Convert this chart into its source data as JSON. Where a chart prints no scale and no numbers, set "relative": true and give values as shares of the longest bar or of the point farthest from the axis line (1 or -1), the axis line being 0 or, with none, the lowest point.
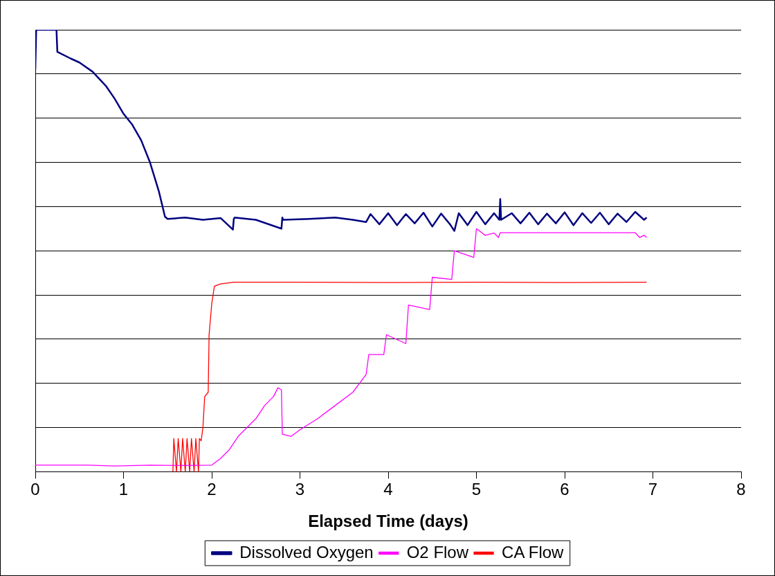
{
  "chart_data": {
    "type": "line",
    "relative": true,
    "xlabel": "Elapsed Time (days)",
    "xlim": [
      0,
      8
    ],
    "xticks": [
      0,
      1,
      2,
      3,
      4,
      5,
      6,
      7,
      8
    ],
    "grid": "y",
    "legend": "bottom",
    "marker": "none",
    "line_style": "solid",
    "series": [
      {
        "name": "Dissolved Oxygen",
        "color": "#000080",
        "x": [
          0,
          0.01,
          0.24,
          0.25,
          0.4,
          0.5,
          0.65,
          0.8,
          0.9,
          1.0,
          1.1,
          1.2,
          1.3,
          1.4,
          1.47,
          1.5,
          1.7,
          1.9,
          2.1,
          2.24,
          2.25,
          2.26,
          2.5,
          2.79,
          2.8,
          2.81,
          3.1,
          3.4,
          3.6,
          3.75,
          3.8,
          3.9,
          4.0,
          4.1,
          4.2,
          4.3,
          4.4,
          4.5,
          4.6,
          4.7,
          4.75,
          4.8,
          4.9,
          5.0,
          5.1,
          5.2,
          5.26,
          5.27,
          5.28,
          5.4,
          5.5,
          5.6,
          5.7,
          5.8,
          5.9,
          6.0,
          6.1,
          6.2,
          6.3,
          6.4,
          6.5,
          6.6,
          6.7,
          6.8,
          6.9,
          6.93
        ],
        "values": [
          0.91,
          1,
          1,
          0.95,
          0.935,
          0.926,
          0.905,
          0.873,
          0.844,
          0.81,
          0.785,
          0.75,
          0.7,
          0.635,
          0.577,
          0.572,
          0.575,
          0.57,
          0.574,
          0.548,
          0.572,
          0.575,
          0.57,
          0.55,
          0.575,
          0.57,
          0.572,
          0.575,
          0.57,
          0.565,
          0.583,
          0.56,
          0.585,
          0.558,
          0.583,
          0.562,
          0.586,
          0.555,
          0.584,
          0.56,
          0.545,
          0.585,
          0.558,
          0.588,
          0.56,
          0.585,
          0.57,
          0.617,
          0.57,
          0.585,
          0.562,
          0.586,
          0.56,
          0.584,
          0.562,
          0.587,
          0.558,
          0.585,
          0.563,
          0.586,
          0.56,
          0.584,
          0.565,
          0.588,
          0.57,
          0.575
        ]
      },
      {
        "name": "O2 Flow",
        "color": "#ff00ff",
        "x": [
          0,
          0.6,
          0.9,
          1.3,
          1.7,
          2.0,
          2.1,
          2.2,
          2.3,
          2.4,
          2.5,
          2.6,
          2.7,
          2.75,
          2.79,
          2.8,
          2.9,
          3.0,
          3.2,
          3.4,
          3.6,
          3.75,
          3.78,
          3.95,
          3.98,
          4.2,
          4.23,
          4.47,
          4.5,
          4.72,
          4.75,
          4.97,
          5.0,
          5.1,
          5.2,
          5.25,
          5.27,
          6.8,
          6.85,
          6.9,
          6.93
        ],
        "values": [
          0.015,
          0.015,
          0.013,
          0.015,
          0.014,
          0.015,
          0.03,
          0.05,
          0.08,
          0.1,
          0.12,
          0.15,
          0.17,
          0.19,
          0.185,
          0.085,
          0.08,
          0.095,
          0.12,
          0.15,
          0.18,
          0.22,
          0.265,
          0.265,
          0.31,
          0.29,
          0.377,
          0.367,
          0.44,
          0.435,
          0.5,
          0.485,
          0.55,
          0.535,
          0.54,
          0.53,
          0.541,
          0.541,
          0.53,
          0.535,
          0.53
        ]
      },
      {
        "name": "CA Flow",
        "color": "#ff0000",
        "x": [
          1.56,
          1.57,
          1.6,
          1.62,
          1.65,
          1.67,
          1.7,
          1.72,
          1.75,
          1.77,
          1.8,
          1.82,
          1.85,
          1.86,
          1.88,
          1.9,
          1.92,
          1.96,
          1.97,
          2.0,
          2.03,
          2.1,
          2.25,
          3.0,
          4.0,
          5.0,
          6.0,
          6.93
        ],
        "values": [
          0,
          0.075,
          0,
          0.075,
          0,
          0.075,
          0,
          0.075,
          0,
          0.075,
          0,
          0.075,
          0,
          0.075,
          0.07,
          0.1,
          0.17,
          0.18,
          0.31,
          0.38,
          0.42,
          0.425,
          0.429,
          0.429,
          0.428,
          0.429,
          0.428,
          0.429
        ]
      }
    ]
  }
}
